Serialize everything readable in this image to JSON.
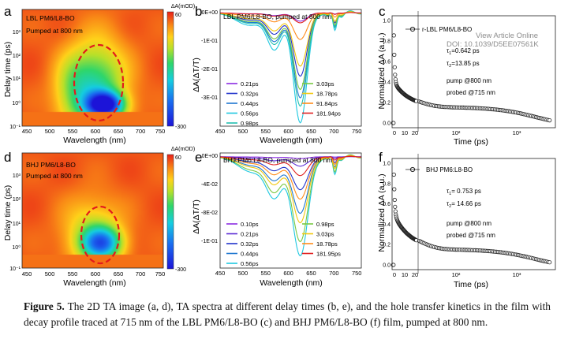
{
  "caption": {
    "label": "Figure 5.",
    "text": " The 2D TA image (a, d), TA spectra at different delay times (b, e), and the hole transfer kinetics in the film with decay profile traced at 715 nm of the LBL PM6/L8-BO (c) and BHJ PM6/L8-BO (f) film, pumped at 800 nm."
  },
  "article_link": {
    "label": "View Article Online",
    "doi": "DOI: 10.1039/D5EE07561K"
  },
  "colors": {
    "accent": "#e31a1c",
    "heatmap_high": "#e83018",
    "heatmap_low": "#1e1ee0"
  },
  "panels": {
    "a": {
      "letter": "a",
      "sample": "LBL PM6/L8-BO",
      "pump": "Pumped at 800 nm",
      "colorbar_title": "ΔA(mOD)",
      "colorbar_max": "60",
      "colorbar_min": "-300",
      "xlabel": "Wavelength (nm)",
      "ylabel": "Delay time (ps)",
      "xticks": [
        "450",
        "500",
        "550",
        "600",
        "650",
        "700",
        "750"
      ],
      "yticks": [
        "10³",
        "10²",
        "10¹",
        "10⁰",
        "10⁻¹"
      ]
    },
    "b": {
      "letter": "b",
      "title": "LBL PM6/L8-BO, pumped at 800 nm",
      "xlabel": "Wavelength (nm)",
      "ylabel": "ΔA(ΔT/T)",
      "xticks": [
        "450",
        "500",
        "550",
        "600",
        "650",
        "700",
        "750"
      ],
      "yticks": [
        "0E+00",
        "-1E-01",
        "-2E-01",
        "-3E-01"
      ]
    },
    "c": {
      "letter": "c",
      "legend": "r-LBL PM6/L8-BO",
      "tau1": "0.642 ps",
      "tau2": "13.85 ps",
      "pump": "pump @800 nm",
      "probe": "probed @715 nm",
      "xlabel": "Time (ps)",
      "ylabel": "Normalized ΔA (a.u.)",
      "xticks": [
        "0",
        "10",
        "20",
        "10²",
        "10³"
      ],
      "yticks": [
        "1.0",
        "0.8",
        "0.6",
        "0.4",
        "0.2",
        "0.0"
      ]
    },
    "d": {
      "letter": "d",
      "sample": "BHJ PM6/L8-BO",
      "pump": "Pumped at 800 nm",
      "colorbar_title": "ΔA(mOD)",
      "colorbar_max": "60",
      "colorbar_min": "-300",
      "xlabel": "Wavelength (nm)",
      "ylabel": "Delay time (ps)",
      "xticks": [
        "450",
        "500",
        "550",
        "600",
        "650",
        "700",
        "750"
      ],
      "yticks": [
        "10³",
        "10²",
        "10¹",
        "10⁰",
        "10⁻¹"
      ]
    },
    "e": {
      "letter": "e",
      "title": "BHJ PM6:L8-BO, pumped at 800 nm",
      "xlabel": "Wavelength (nm)",
      "ylabel": "ΔA(ΔT/T)",
      "xticks": [
        "450",
        "500",
        "550",
        "600",
        "650",
        "700",
        "750"
      ],
      "yticks": [
        "0E+00",
        "-4E-02",
        "-8E-02",
        "-1E-01"
      ]
    },
    "f": {
      "letter": "f",
      "legend": "BHJ PM6:L8-BO",
      "tau1": "0.753 ps",
      "tau2": "14.66 ps",
      "pump": "pump @800 nm",
      "probe": "probed @715 nm",
      "xlabel": "Time (ps)",
      "ylabel": "Normallized ΔA (a.u.)",
      "xticks": [
        "0",
        "10",
        "20",
        "10²",
        "10³"
      ],
      "yticks": [
        "1.0",
        "0.8",
        "0.6",
        "0.4",
        "0.2",
        "0.0"
      ]
    }
  },
  "chart_data": [
    {
      "id": "a",
      "type": "heatmap",
      "title": "LBL PM6/L8-BO Pumped at 800 nm",
      "xlabel": "Wavelength (nm)",
      "ylabel": "Delay time (ps)",
      "xlim": [
        450,
        760
      ],
      "ylim_log10": [
        -1,
        3.7
      ],
      "zlim": [
        -300,
        60
      ],
      "zlabel": "ΔA(mOD)",
      "features": [
        {
          "center_nm": 632,
          "center_log_t": -0.15,
          "min_mOD": -300,
          "width_nm": 28,
          "width_dec": 0.35
        },
        {
          "center_nm": 615,
          "center_log_t": 0.6,
          "min_mOD": -150,
          "width_nm": 45,
          "width_dec": 1.3
        },
        {
          "center_nm": 560,
          "center_log_t": 0.4,
          "min_mOD": -70,
          "width_nm": 30,
          "width_dec": 1.0
        }
      ]
    },
    {
      "id": "b",
      "type": "line",
      "title": "LBL PM6/L8-BO, pumped at 800 nm",
      "xlabel": "Wavelength (nm)",
      "ylabel": "ΔA(ΔT/T)",
      "xlim": [
        450,
        760
      ],
      "ylim": [
        -0.34,
        0.01
      ],
      "shape": {
        "bands": [
          {
            "center": 626,
            "width": 15,
            "weight": 0.88
          },
          {
            "center": 570,
            "width": 16,
            "weight": 0.28
          },
          {
            "center": 515,
            "width": 30,
            "weight": 0.1
          }
        ],
        "dip": {
          "center": 700,
          "width": 9,
          "depth": 0.15
        }
      },
      "series": [
        {
          "name": "0.21ps",
          "color": "#8a2be2",
          "amplitude": 0.025
        },
        {
          "name": "0.32ps",
          "color": "#2233cc",
          "amplitude": 0.19
        },
        {
          "name": "0.44ps",
          "color": "#1f77d0",
          "amplitude": 0.255
        },
        {
          "name": "0.56ps",
          "color": "#1ec8e0",
          "amplitude": 0.33
        },
        {
          "name": "0.98ps",
          "color": "#22c0b0",
          "amplitude": 0.28
        },
        {
          "name": "3.03ps",
          "color": "#7ac943",
          "amplitude": 0.23
        },
        {
          "name": "18.78ps",
          "color": "#f2c80f",
          "amplitude": 0.16
        },
        {
          "name": "91.84ps",
          "color": "#ff8c1a",
          "amplitude": 0.08
        },
        {
          "name": "181.94ps",
          "color": "#e02020",
          "amplitude": 0.03
        }
      ]
    },
    {
      "id": "c",
      "type": "scatter",
      "title": "r-LBL PM6/L8-BO",
      "xlabel": "Time (ps)",
      "ylabel": "Normalized ΔA (a.u.)",
      "ylim": [
        0,
        1.0
      ],
      "x_axis": "linear 0-20 ps, then log 20-6000 ps",
      "tau1_ps": 0.642,
      "tau2_ps": 13.85,
      "pump_nm": 800,
      "probe_nm": 715,
      "fit": {
        "a1": 0.62,
        "tau1": 0.642,
        "a2": 0.23,
        "tau2": 13.85,
        "a3": 0.15,
        "tau3": 3000
      }
    },
    {
      "id": "d",
      "type": "heatmap",
      "title": "BHJ PM6/L8-BO Pumped at 800 nm",
      "xlabel": "Wavelength (nm)",
      "ylabel": "Delay time (ps)",
      "xlim": [
        450,
        760
      ],
      "ylim_log10": [
        -1,
        3.7
      ],
      "zlim": [
        -300,
        60
      ],
      "zlabel": "ΔA(mOD)",
      "features": [
        {
          "center_nm": 625,
          "center_log_t": 0.0,
          "min_mOD": -210,
          "width_nm": 30,
          "width_dec": 0.45
        },
        {
          "center_nm": 605,
          "center_log_t": 0.4,
          "min_mOD": -90,
          "width_nm": 45,
          "width_dec": 1.0
        }
      ]
    },
    {
      "id": "e",
      "type": "line",
      "title": "BHJ PM6:L8-BO, pumped at 800 nm",
      "xlabel": "Wavelength (nm)",
      "ylabel": "ΔA(ΔT/T)",
      "xlim": [
        450,
        760
      ],
      "ylim": [
        -0.118,
        0.004
      ],
      "shape": {
        "bands": [
          {
            "center": 626,
            "width": 17,
            "weight": 0.78
          },
          {
            "center": 570,
            "width": 18,
            "weight": 0.3
          },
          {
            "center": 520,
            "width": 30,
            "weight": 0.12
          }
        ],
        "dip": {
          "center": 700,
          "width": 8,
          "depth": 0.15
        }
      },
      "series": [
        {
          "name": "0.10ps",
          "color": "#8a2be2",
          "amplitude": 0.002
        },
        {
          "name": "0.21ps",
          "color": "#5b2bd6",
          "amplitude": 0.01
        },
        {
          "name": "0.32ps",
          "color": "#2233cc",
          "amplitude": 0.035
        },
        {
          "name": "0.44ps",
          "color": "#1f77d0",
          "amplitude": 0.06
        },
        {
          "name": "0.56ps",
          "color": "#1ec8e0",
          "amplitude": 0.105
        },
        {
          "name": "0.98ps",
          "color": "#7ac943",
          "amplitude": 0.09
        },
        {
          "name": "3.03ps",
          "color": "#f2c80f",
          "amplitude": 0.07
        },
        {
          "name": "18.78ps",
          "color": "#ff8c1a",
          "amplitude": 0.045
        },
        {
          "name": "181.95ps",
          "color": "#e02020",
          "amplitude": 0.02
        }
      ]
    },
    {
      "id": "f",
      "type": "scatter",
      "title": "BHJ PM6:L8-BO",
      "xlabel": "Time (ps)",
      "ylabel": "Normallized ΔA (a.u.)",
      "ylim": [
        0,
        1.0
      ],
      "x_axis": "linear 0-20 ps, then log 20-6000 ps",
      "tau1_ps": 0.753,
      "tau2_ps": 14.66,
      "pump_nm": 800,
      "probe_nm": 715,
      "fit": {
        "a1": 0.52,
        "tau1": 0.753,
        "a2": 0.33,
        "tau2": 14.66,
        "a3": 0.15,
        "tau3": 3000
      }
    }
  ]
}
